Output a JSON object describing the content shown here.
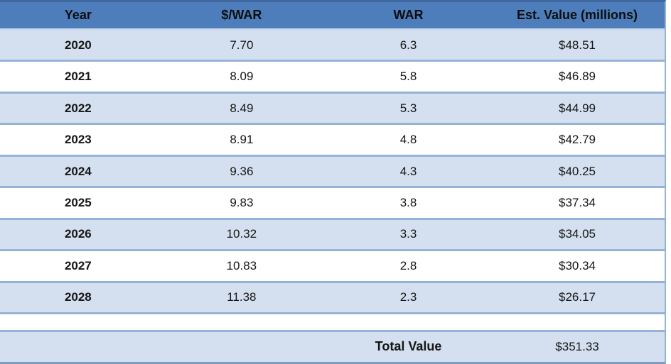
{
  "chart_data": {
    "type": "table",
    "columns": [
      "Year",
      "$/WAR",
      "WAR",
      "Est. Value (millions)"
    ],
    "rows": [
      [
        "2020",
        "7.70",
        "6.3",
        "$48.51"
      ],
      [
        "2021",
        "8.09",
        "5.8",
        "$46.89"
      ],
      [
        "2022",
        "8.49",
        "5.3",
        "$44.99"
      ],
      [
        "2023",
        "8.91",
        "4.8",
        "$42.79"
      ],
      [
        "2024",
        "9.36",
        "4.3",
        "$40.25"
      ],
      [
        "2025",
        "9.83",
        "3.8",
        "$37.34"
      ],
      [
        "2026",
        "10.32",
        "3.3",
        "$34.05"
      ],
      [
        "2027",
        "10.83",
        "2.8",
        "$30.34"
      ],
      [
        "2028",
        "11.38",
        "2.3",
        "$26.17"
      ]
    ],
    "total_label": "Total Value",
    "total_value": "$351.33"
  },
  "colors": {
    "header_bg": "#4D7EBB",
    "band_row_bg": "#D4E0EF",
    "plain_row_bg": "#FFFFFF",
    "grid_line": "#95B3D7",
    "outer_top": "#41689E",
    "outer_bottom": "#7E9CC4",
    "header_divider": "#C9D8EB",
    "text": "#161616"
  }
}
